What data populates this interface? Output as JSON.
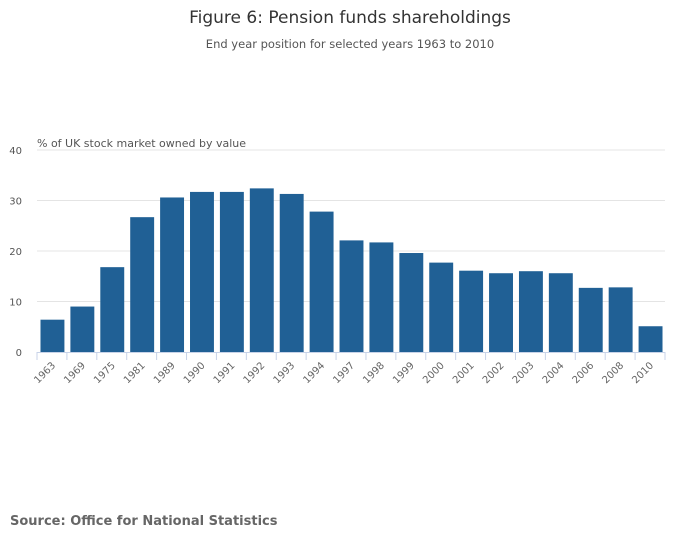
{
  "title": "Figure 6: Pension funds shareholdings",
  "subtitle": "End year position for selected years 1963 to 2010",
  "source": "Source: Office for National Statistics",
  "chart_data": {
    "type": "bar",
    "title": "Figure 6: Pension funds shareholdings",
    "subtitle": "End year position for selected years 1963 to 2010",
    "ylabel": "% of UK stock market owned by value",
    "xlabel": "",
    "ylim": [
      0,
      40
    ],
    "yticks": [
      0,
      10,
      20,
      30,
      40
    ],
    "grid": true,
    "bar_color": "#206095",
    "categories": [
      "1963",
      "1969",
      "1975",
      "1981",
      "1989",
      "1990",
      "1991",
      "1992",
      "1993",
      "1994",
      "1997",
      "1998",
      "1999",
      "2000",
      "2001",
      "2002",
      "2003",
      "2004",
      "2006",
      "2008",
      "2010"
    ],
    "values": [
      6.4,
      9.0,
      16.8,
      26.7,
      30.6,
      31.7,
      31.7,
      32.4,
      31.3,
      27.8,
      22.1,
      21.7,
      19.6,
      17.7,
      16.1,
      15.6,
      16.0,
      15.6,
      12.7,
      12.8,
      5.1
    ]
  }
}
